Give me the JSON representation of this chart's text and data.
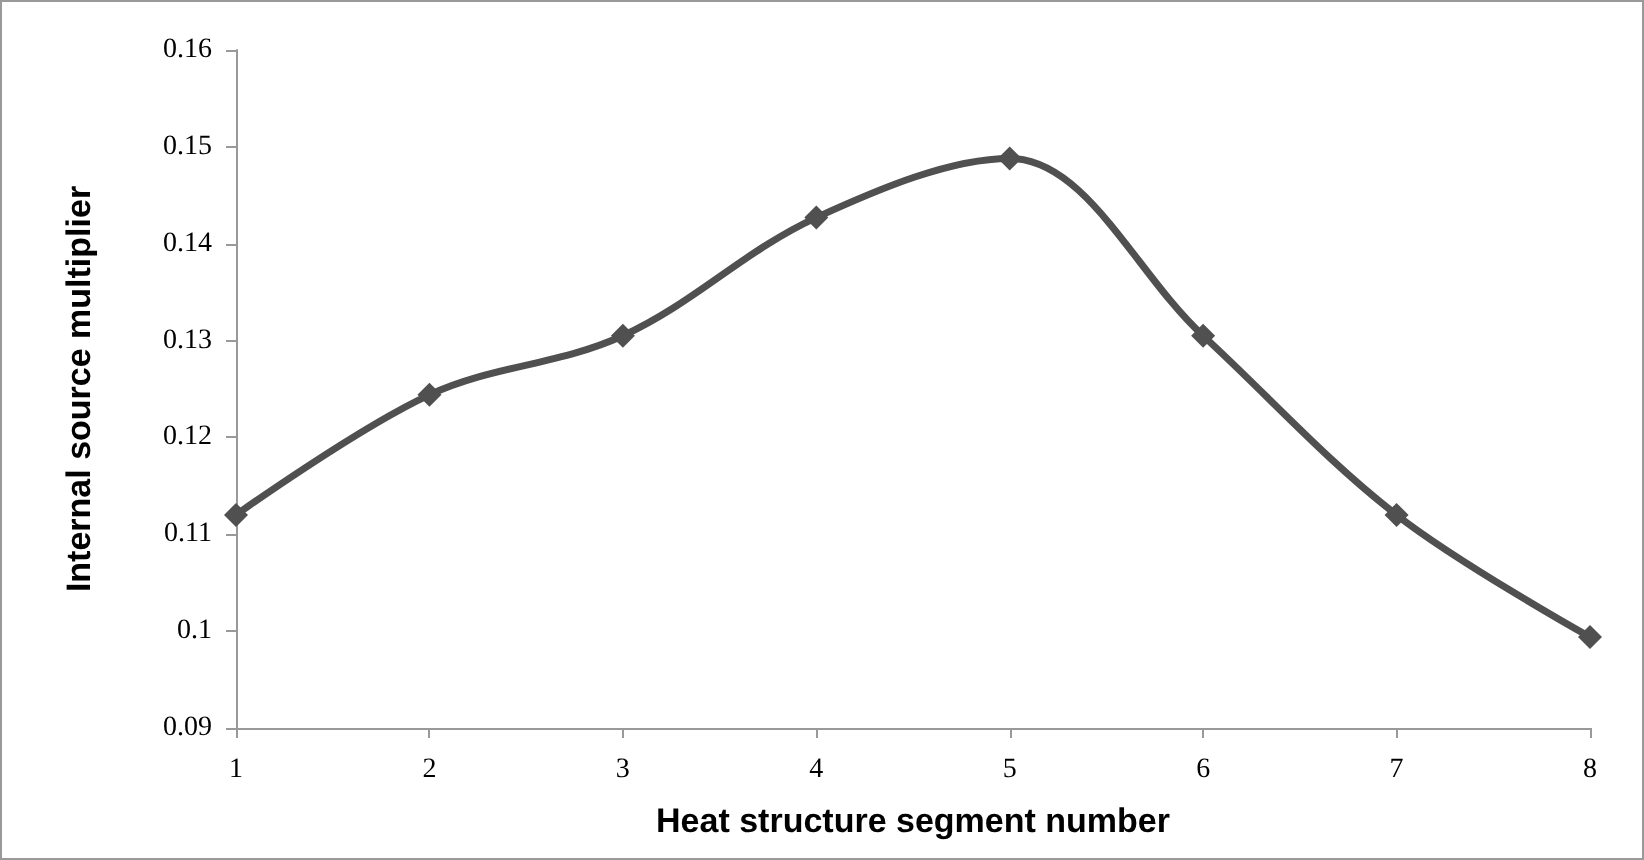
{
  "chart_data": {
    "type": "line",
    "xlabel": "Heat structure segment number",
    "ylabel": "Internal source multiplier",
    "categories": [
      "1",
      "2",
      "3",
      "4",
      "5",
      "6",
      "7",
      "8"
    ],
    "series": [
      {
        "color": "#505050",
        "values": [
          0.112,
          0.1244,
          0.1305,
          0.1427,
          0.1488,
          0.1305,
          0.112,
          0.0994
        ]
      }
    ],
    "ylim": [
      0.09,
      0.16
    ],
    "yticks": [
      0.09,
      0.1,
      0.11,
      0.12,
      0.13,
      0.14,
      0.15,
      0.16
    ],
    "marker": "diamond",
    "line_style": "solid"
  }
}
